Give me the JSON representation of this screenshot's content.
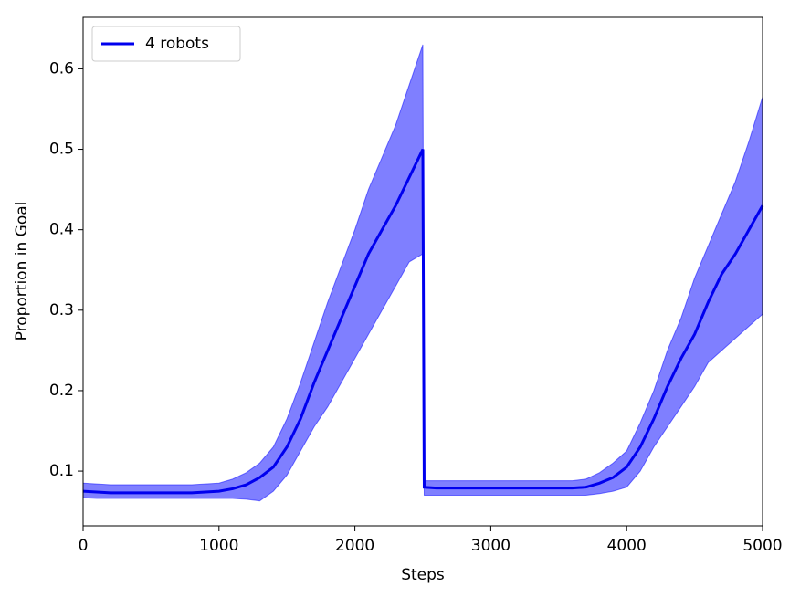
{
  "chart_data": {
    "type": "line",
    "xlabel": "Steps",
    "ylabel": "Proportion in Goal",
    "x": [
      0,
      100,
      200,
      300,
      400,
      500,
      600,
      700,
      800,
      900,
      1000,
      1100,
      1200,
      1300,
      1400,
      1500,
      1600,
      1700,
      1800,
      1900,
      2000,
      2100,
      2200,
      2300,
      2400,
      2500,
      2510,
      2600,
      2700,
      2800,
      2900,
      3000,
      3100,
      3200,
      3300,
      3400,
      3500,
      3600,
      3700,
      3800,
      3900,
      4000,
      4100,
      4200,
      4300,
      4400,
      4500,
      4600,
      4700,
      4800,
      4900,
      5000
    ],
    "series": [
      {
        "name": "4 robots",
        "color": "#0000ee",
        "band_color": "#0000ff",
        "values": [
          0.075,
          0.074,
          0.073,
          0.073,
          0.073,
          0.073,
          0.073,
          0.073,
          0.073,
          0.074,
          0.075,
          0.078,
          0.083,
          0.092,
          0.105,
          0.13,
          0.165,
          0.21,
          0.25,
          0.29,
          0.33,
          0.37,
          0.4,
          0.43,
          0.465,
          0.5,
          0.08,
          0.079,
          0.079,
          0.079,
          0.079,
          0.079,
          0.079,
          0.079,
          0.079,
          0.079,
          0.079,
          0.079,
          0.08,
          0.085,
          0.092,
          0.105,
          0.13,
          0.165,
          0.205,
          0.24,
          0.27,
          0.31,
          0.345,
          0.37,
          0.4,
          0.43
        ],
        "upper": [
          0.085,
          0.084,
          0.083,
          0.083,
          0.083,
          0.083,
          0.083,
          0.083,
          0.083,
          0.084,
          0.085,
          0.09,
          0.098,
          0.11,
          0.13,
          0.165,
          0.21,
          0.26,
          0.31,
          0.355,
          0.4,
          0.45,
          0.49,
          0.53,
          0.58,
          0.63,
          0.088,
          0.088,
          0.088,
          0.088,
          0.088,
          0.088,
          0.088,
          0.088,
          0.088,
          0.088,
          0.088,
          0.088,
          0.09,
          0.098,
          0.11,
          0.125,
          0.16,
          0.2,
          0.25,
          0.29,
          0.34,
          0.38,
          0.42,
          0.46,
          0.51,
          0.565
        ],
        "lower": [
          0.067,
          0.066,
          0.066,
          0.066,
          0.066,
          0.066,
          0.066,
          0.066,
          0.066,
          0.066,
          0.066,
          0.066,
          0.065,
          0.063,
          0.075,
          0.095,
          0.125,
          0.155,
          0.18,
          0.21,
          0.24,
          0.27,
          0.3,
          0.33,
          0.36,
          0.37,
          0.07,
          0.07,
          0.07,
          0.07,
          0.07,
          0.07,
          0.07,
          0.07,
          0.07,
          0.07,
          0.07,
          0.07,
          0.07,
          0.072,
          0.075,
          0.08,
          0.1,
          0.13,
          0.155,
          0.18,
          0.205,
          0.235,
          0.25,
          0.265,
          0.28,
          0.295
        ]
      }
    ],
    "xlim": [
      0,
      5000
    ],
    "xticks": [
      0,
      1000,
      2000,
      3000,
      4000,
      5000
    ],
    "ylim": [
      0.032,
      0.664
    ],
    "yticks": [
      0.1,
      0.2,
      0.3,
      0.4,
      0.5,
      0.6
    ],
    "legend": "upper left"
  }
}
